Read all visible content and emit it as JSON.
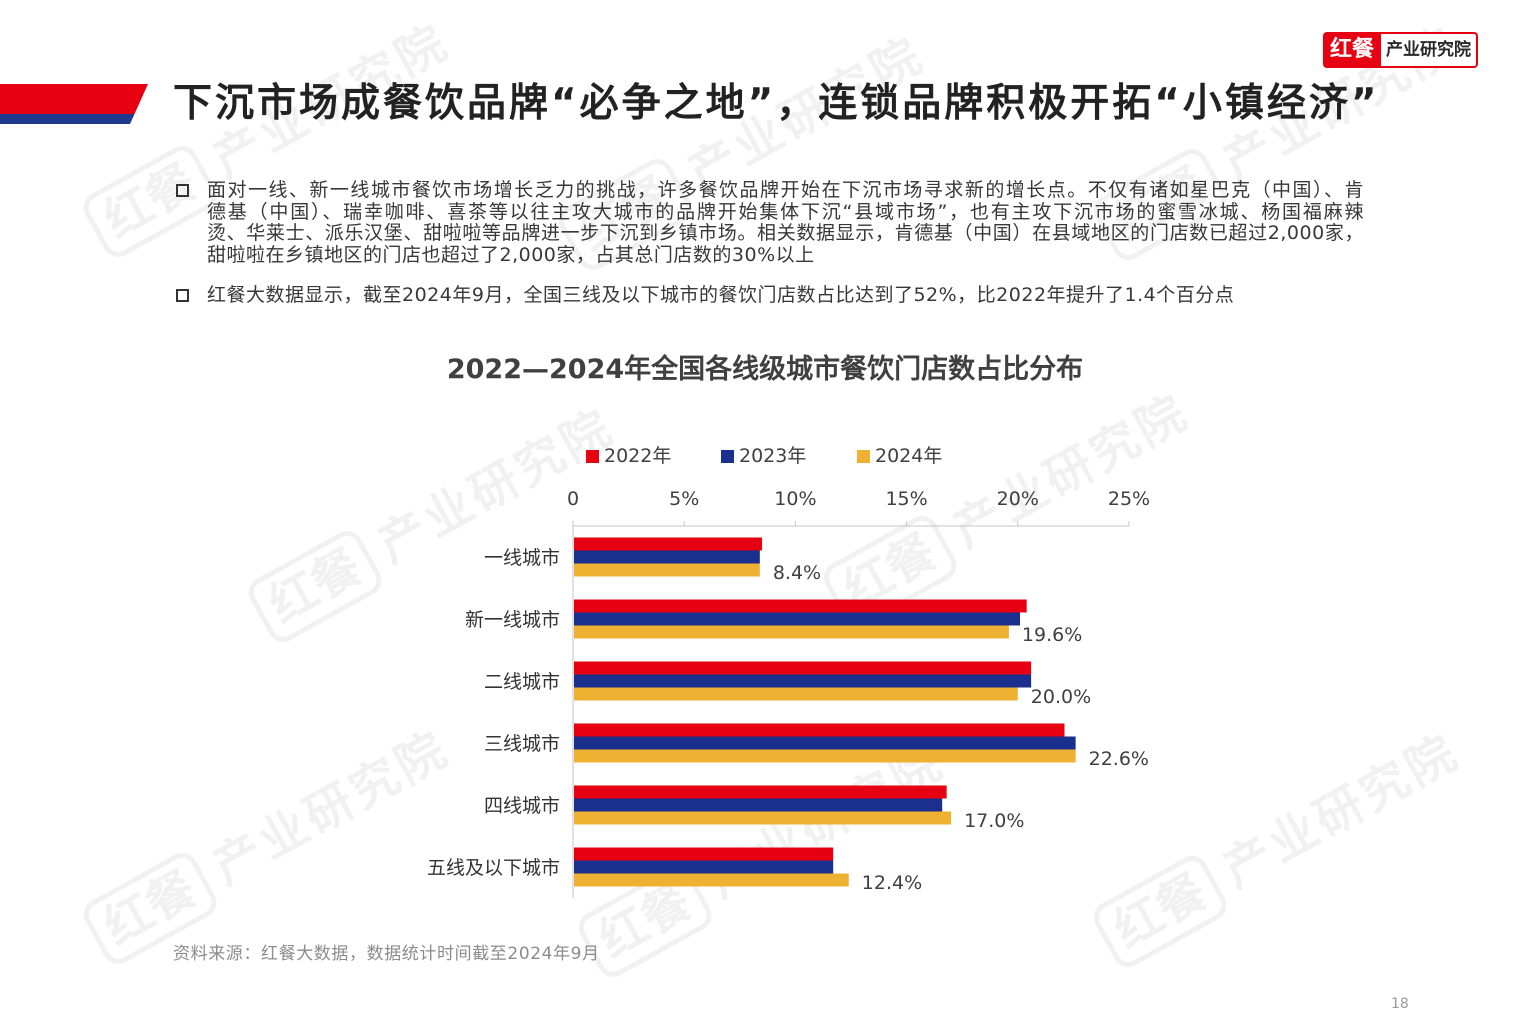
{
  "logo": {
    "brand": "红餐",
    "subtitle": "产业研究院"
  },
  "watermark": {
    "brand": "红餐",
    "subtitle": "产业研究院"
  },
  "colors": {
    "accent_red": "#e60012",
    "accent_blue": "#1d3a8f"
  },
  "header": {
    "title": "下沉市场成餐饮品牌“必争之地”，连锁品牌积极开拓“小镇经济”"
  },
  "bullets": [
    {
      "lines": [
        "面对一线、新一线城市餐饮市场增长乏力的挑战，许多餐饮品牌开始在下沉市场寻求新的增长点。不仅有诸如星巴克（中国）、肯",
        "德基（中国）、瑞幸咖啡、喜茶等以往主攻大城市的品牌开始集体下沉“县域市场”，也有主攻下沉市场的蜜雪冰城、杨国福麻辣",
        "烫、华莱士、派乐汉堡、甜啦啦等品牌进一步下沉到乡镇市场。相关数据显示，肯德基（中国）在县域地区的门店数已超过2,000家，",
        "甜啦啦在乡镇地区的门店也超过了2,000家，占其总门店数的30%以上"
      ]
    },
    {
      "lines": [
        "红餐大数据显示，截至2024年9月，全国三线及以下城市的餐饮门店数占比达到了52%，比2022年提升了1.4个百分点"
      ]
    }
  ],
  "chart_data": {
    "type": "bar",
    "title": "2022—2024年全国各线级城市餐饮门店数占比分布",
    "categories": [
      "一线城市",
      "新一线城市",
      "二线城市",
      "三线城市",
      "四线城市",
      "五线及以下城市"
    ],
    "series": [
      {
        "name": "2022年",
        "color": "#e60012",
        "values": [
          8.5,
          20.4,
          20.6,
          22.1,
          16.8,
          11.7
        ]
      },
      {
        "name": "2023年",
        "color": "#1b2f8e",
        "values": [
          8.4,
          20.1,
          20.6,
          22.6,
          16.6,
          11.7
        ]
      },
      {
        "name": "2024年",
        "color": "#eeb132",
        "values": [
          8.4,
          19.6,
          20.0,
          22.6,
          17.0,
          12.4
        ],
        "labels": [
          "8.4%",
          "19.6%",
          "20.0%",
          "22.6%",
          "17.0%",
          "12.4%"
        ]
      }
    ],
    "x_ticks": [
      "0",
      "5%",
      "10%",
      "15%",
      "20%",
      "25%"
    ],
    "x_tick_values": [
      0,
      5,
      10,
      15,
      20,
      25
    ],
    "xlim": [
      0,
      25
    ],
    "legend_position": "top",
    "grid": false
  },
  "source": "资料来源：红餐大数据，数据统计时间截至2024年9月",
  "page_number": "18"
}
